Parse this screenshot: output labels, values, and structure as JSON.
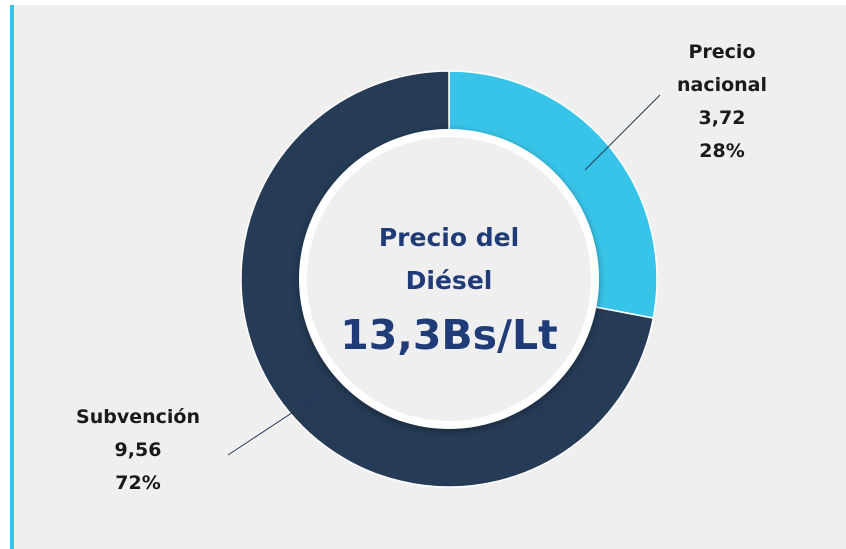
{
  "chart_data": {
    "type": "donut",
    "categories": [
      "Precio nacional",
      "Subvención"
    ],
    "values": [
      3.72,
      9.56
    ],
    "value_labels": [
      "3,72",
      "9,56"
    ],
    "percentages": [
      28,
      72
    ],
    "percentage_labels": [
      "28%",
      "72%"
    ],
    "colors": [
      "#38c4e9",
      "#253b56"
    ],
    "center_title": [
      "Precio del",
      "Diésel"
    ],
    "center_value": "13,3Bs/Lt"
  }
}
